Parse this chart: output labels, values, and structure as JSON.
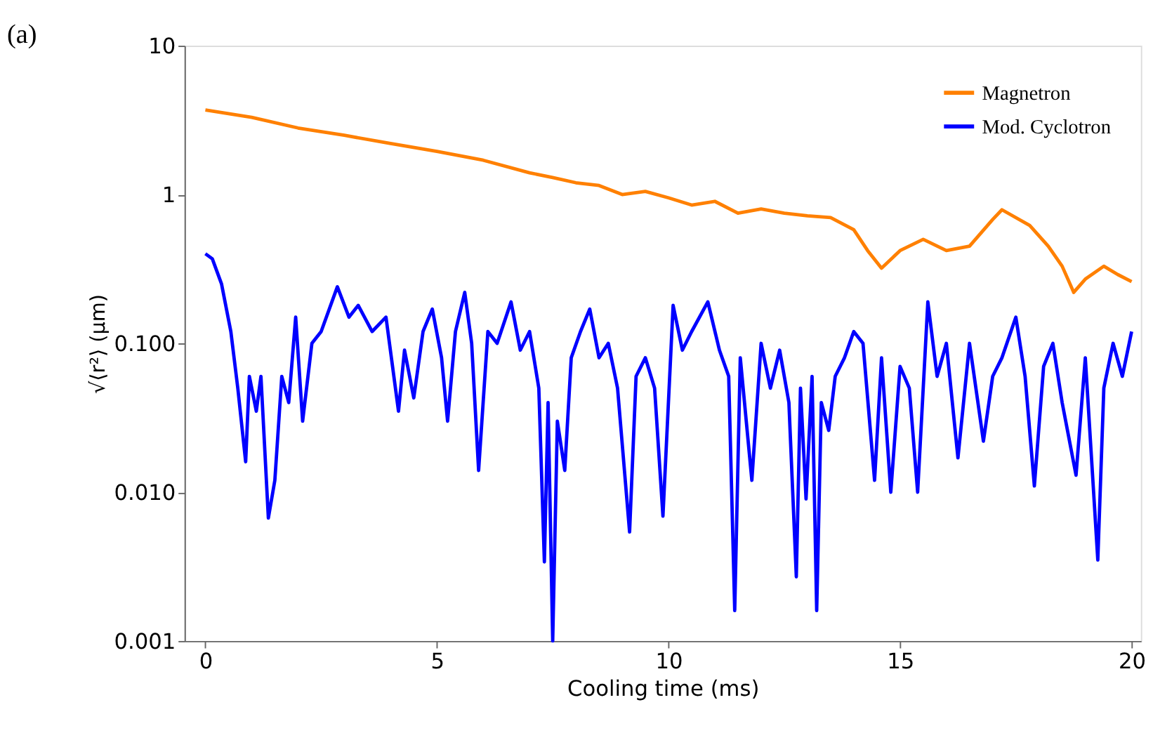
{
  "chart_data": {
    "type": "line",
    "title": "(a)",
    "xlabel": "Cooling time (ms)",
    "ylabel": "√⟨r²⟩ (μm)",
    "log": "y",
    "xlim": [
      -0.45,
      20.2
    ],
    "xticks": [
      0,
      5,
      10,
      15,
      20
    ],
    "ylim": [
      0.001,
      10
    ],
    "yticks": [
      {
        "value": 0.001,
        "label": "0.001"
      },
      {
        "value": 0.01,
        "label": "0.010"
      },
      {
        "value": 0.1,
        "label": "0.100"
      },
      1,
      10
    ],
    "grid": false,
    "legend": "top right",
    "marker": "none",
    "line_style": "solid",
    "series": [
      {
        "name": "Magnetron",
        "color": "#ff8000",
        "x": [
          0,
          1,
          2,
          3,
          4,
          5,
          6,
          7,
          7.5,
          8,
          8.5,
          9,
          9.5,
          10,
          10.5,
          11,
          11.5,
          12,
          12.5,
          13,
          13.5,
          14,
          14.3,
          14.6,
          15,
          15.5,
          16,
          16.5,
          17,
          17.2,
          17.8,
          18.2,
          18.5,
          18.75,
          19,
          19.4,
          19.7,
          20
        ],
        "values": [
          3.7,
          3.3,
          2.8,
          2.5,
          2.2,
          1.95,
          1.7,
          1.4,
          1.3,
          1.2,
          1.15,
          1.0,
          1.05,
          0.95,
          0.85,
          0.9,
          0.75,
          0.8,
          0.75,
          0.72,
          0.7,
          0.58,
          0.42,
          0.32,
          0.42,
          0.5,
          0.42,
          0.45,
          0.68,
          0.79,
          0.62,
          0.45,
          0.33,
          0.22,
          0.27,
          0.33,
          0.29,
          0.26
        ]
      },
      {
        "name": "Mod. Cyclotron",
        "color": "#0000ff",
        "x": [
          0,
          0.15,
          0.35,
          0.55,
          0.7,
          0.87,
          0.95,
          1.1,
          1.2,
          1.36,
          1.5,
          1.65,
          1.8,
          1.95,
          2.1,
          2.3,
          2.5,
          2.85,
          3.1,
          3.3,
          3.6,
          3.9,
          4.17,
          4.3,
          4.5,
          4.7,
          4.9,
          5.1,
          5.23,
          5.4,
          5.6,
          5.75,
          5.9,
          6.1,
          6.3,
          6.6,
          6.8,
          7.0,
          7.2,
          7.32,
          7.4,
          7.5,
          7.6,
          7.76,
          7.9,
          8.1,
          8.3,
          8.5,
          8.7,
          8.9,
          9.16,
          9.3,
          9.5,
          9.7,
          9.88,
          10.1,
          10.3,
          10.5,
          10.85,
          11.1,
          11.3,
          11.43,
          11.55,
          11.8,
          12.0,
          12.2,
          12.4,
          12.6,
          12.76,
          12.85,
          12.97,
          13.1,
          13.2,
          13.3,
          13.46,
          13.6,
          13.8,
          14.0,
          14.2,
          14.45,
          14.6,
          14.8,
          15.0,
          15.2,
          15.38,
          15.6,
          15.8,
          16.0,
          16.25,
          16.5,
          16.8,
          17.0,
          17.2,
          17.5,
          17.7,
          17.9,
          18.1,
          18.3,
          18.5,
          18.8,
          19.0,
          19.27,
          19.4,
          19.6,
          19.8,
          20.0
        ],
        "values": [
          0.4,
          0.37,
          0.25,
          0.12,
          0.05,
          0.016,
          0.06,
          0.035,
          0.06,
          0.0067,
          0.012,
          0.06,
          0.04,
          0.15,
          0.03,
          0.1,
          0.12,
          0.24,
          0.15,
          0.18,
          0.12,
          0.15,
          0.035,
          0.09,
          0.043,
          0.12,
          0.17,
          0.08,
          0.03,
          0.12,
          0.22,
          0.1,
          0.014,
          0.12,
          0.1,
          0.19,
          0.09,
          0.12,
          0.05,
          0.0034,
          0.04,
          0.001,
          0.03,
          0.014,
          0.08,
          0.12,
          0.17,
          0.08,
          0.1,
          0.05,
          0.0054,
          0.06,
          0.08,
          0.05,
          0.0069,
          0.18,
          0.09,
          0.12,
          0.19,
          0.09,
          0.06,
          0.0016,
          0.08,
          0.012,
          0.1,
          0.05,
          0.09,
          0.04,
          0.0027,
          0.05,
          0.009,
          0.06,
          0.0016,
          0.04,
          0.026,
          0.06,
          0.08,
          0.12,
          0.1,
          0.012,
          0.08,
          0.01,
          0.07,
          0.05,
          0.01,
          0.19,
          0.06,
          0.1,
          0.017,
          0.1,
          0.022,
          0.06,
          0.08,
          0.15,
          0.06,
          0.011,
          0.07,
          0.1,
          0.04,
          0.013,
          0.08,
          0.0035,
          0.05,
          0.1,
          0.06,
          0.12
        ]
      }
    ]
  }
}
